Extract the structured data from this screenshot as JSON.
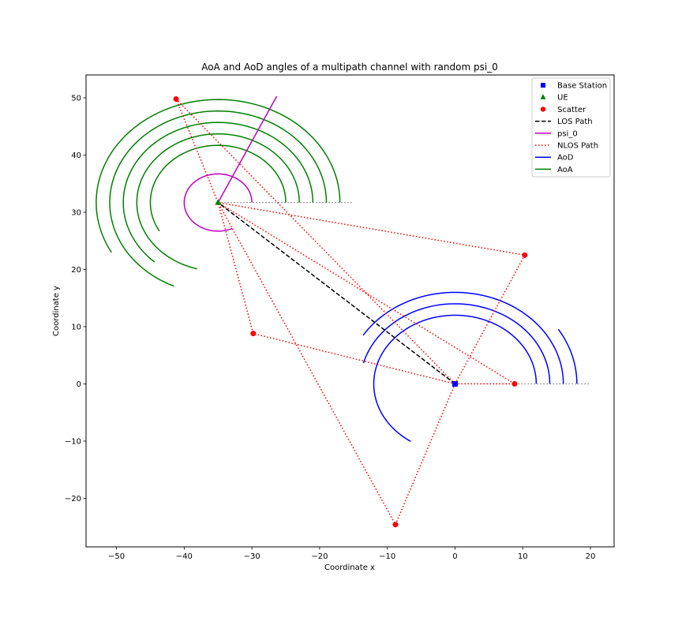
{
  "chart_data": {
    "type": "scatter",
    "title": "AoA and AoD angles of a multipath channel with random psi_0",
    "xlabel": "Coordinate x",
    "ylabel": "Coordinate y",
    "xlim": [
      -54.5,
      23.5
    ],
    "ylim": [
      -28.5,
      54
    ],
    "xticks": [
      -50,
      -40,
      -30,
      -20,
      -10,
      0,
      10,
      20
    ],
    "yticks": [
      -20,
      -10,
      0,
      10,
      20,
      30,
      40,
      50
    ],
    "grid": false,
    "legend_placement": "top-right",
    "base_station": {
      "x": 0,
      "y": 0
    },
    "ue": {
      "x": -35,
      "y": 31.7
    },
    "scatterers": [
      {
        "x": -41.2,
        "y": 49.8
      },
      {
        "x": -29.8,
        "y": 8.8
      },
      {
        "x": 10.3,
        "y": 22.5
      },
      {
        "x": 8.8,
        "y": 0
      },
      {
        "x": -8.8,
        "y": -24.6
      }
    ],
    "psi_0_deg": 65,
    "aod_arcs": [
      {
        "radius": 10,
        "angle_deg": 0
      },
      {
        "radius": 12,
        "angle_deg": 237
      },
      {
        "radius": 14,
        "angle_deg": 165
      },
      {
        "radius": 16,
        "angle_deg": 148
      },
      {
        "radius": 18,
        "angle_deg": 32
      }
    ],
    "aoa_arcs": [
      {
        "radius": 10,
        "angle_deg": 30
      },
      {
        "radius": 12,
        "angle_deg": 75
      },
      {
        "radius": 14,
        "angle_deg": 48
      },
      {
        "radius": 16,
        "angle_deg": 66
      },
      {
        "radius": 18,
        "angle_deg": 29
      }
    ],
    "legend": [
      {
        "label": "Base Station",
        "color": "#0000ff",
        "kind": "square"
      },
      {
        "label": "UE",
        "color": "#008000",
        "kind": "triangle"
      },
      {
        "label": "Scatter",
        "color": "#ff0000",
        "kind": "circle"
      },
      {
        "label": "LOS Path",
        "color": "#000000",
        "kind": "dashed"
      },
      {
        "label": "psi_0",
        "color": "#bf00bf",
        "kind": "solid"
      },
      {
        "label": "NLOS Path",
        "color": "#ff0000",
        "kind": "dotted"
      },
      {
        "label": "AoD",
        "color": "#0000ff",
        "kind": "solid"
      },
      {
        "label": "AoA",
        "color": "#008000",
        "kind": "solid"
      }
    ]
  }
}
